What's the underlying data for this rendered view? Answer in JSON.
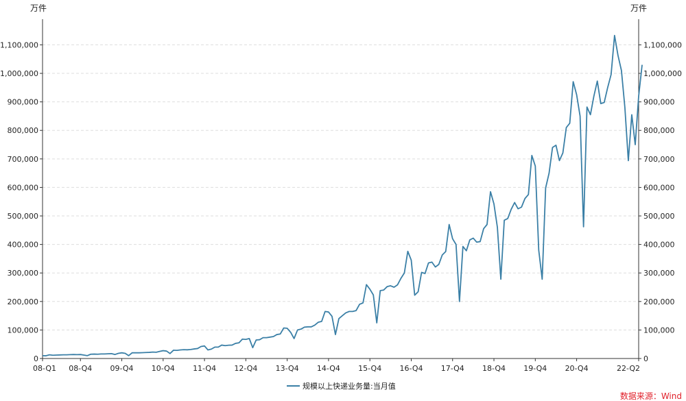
{
  "chart_data": {
    "type": "line",
    "unit_left": "万件",
    "unit_right": "万件",
    "x_tick_labels": [
      "08-Q1",
      "08-Q4",
      "09-Q4",
      "10-Q4",
      "11-Q4",
      "12-Q4",
      "13-Q4",
      "14-Q4",
      "15-Q4",
      "16-Q4",
      "17-Q4",
      "18-Q4",
      "19-Q4",
      "20-Q4",
      "22-Q2"
    ],
    "y_ticks": [
      "0",
      "100,000",
      "200,000",
      "300,000",
      "400,000",
      "500,000",
      "600,000",
      "700,000",
      "800,000",
      "900,000",
      "1,000,000",
      "1,100,000"
    ],
    "ylim": [
      0,
      1190000
    ],
    "grid": "horizontal dashed",
    "legend_position": "bottom-center",
    "source_note": "数据来源：Wind",
    "series": [
      {
        "name": "规模以上快递业务量:当月值",
        "color": "#3A7FA6",
        "start": "2008-01",
        "frequency": "monthly",
        "values": [
          10000,
          9500,
          13000,
          11500,
          12000,
          12500,
          13000,
          13000,
          13500,
          14000,
          13500,
          14000,
          12000,
          10000,
          15000,
          15500,
          15000,
          16000,
          16000,
          16500,
          17000,
          14000,
          18000,
          20000,
          18000,
          10000,
          20000,
          20000,
          20000,
          20500,
          21000,
          21500,
          22500,
          22000,
          25000,
          27500,
          26000,
          17500,
          29000,
          28500,
          30000,
          31000,
          30500,
          31500,
          33500,
          35000,
          42000,
          44000,
          30000,
          33000,
          40000,
          40000,
          47000,
          45000,
          46500,
          47000,
          53000,
          55000,
          68000,
          67000,
          70000,
          38000,
          65000,
          66000,
          73000,
          73000,
          75000,
          77000,
          84000,
          86000,
          107000,
          106000,
          92000,
          70000,
          100000,
          103000,
          110000,
          111000,
          111000,
          117000,
          127000,
          130000,
          165000,
          163000,
          148000,
          84000,
          140000,
          150000,
          160000,
          165000,
          165000,
          168000,
          190000,
          195000,
          259000,
          243000,
          223000,
          125000,
          238000,
          240000,
          252000,
          255000,
          250000,
          258000,
          281000,
          300000,
          376000,
          345000,
          222000,
          234000,
          302000,
          298000,
          335000,
          338000,
          321000,
          330000,
          363000,
          375000,
          470000,
          420000,
          400000,
          200000,
          393000,
          378000,
          416000,
          422000,
          408000,
          410000,
          455000,
          470000,
          585000,
          542000,
          460000,
          278000,
          485000,
          491000,
          523000,
          547000,
          525000,
          531000,
          561000,
          575000,
          712000,
          675000,
          380000,
          278000,
          598000,
          650000,
          740000,
          748000,
          694000,
          721000,
          810000,
          825000,
          971000,
          925000,
          850000,
          462000,
          882000,
          855000,
          920000,
          973000,
          894000,
          898000,
          950000,
          996000,
          1133000,
          1063000,
          1010000,
          880000,
          694000,
          855000,
          750000,
          920000,
          1030000
        ]
      }
    ]
  }
}
